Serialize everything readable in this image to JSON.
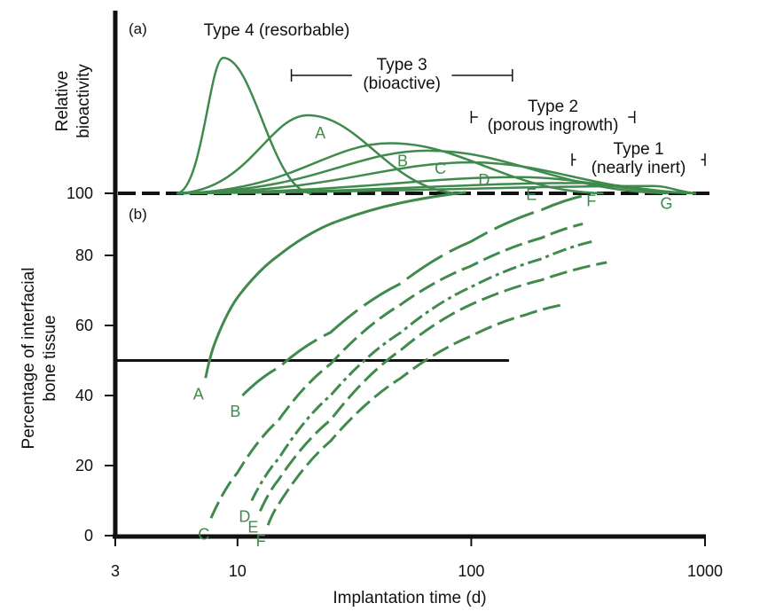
{
  "chart_data": {
    "type": "line",
    "panels": [
      "(a)",
      "(b)"
    ],
    "xlabel": "Implantation time (d)",
    "x_scale": "log",
    "xlim": [
      3,
      1000
    ],
    "x_ticks": [
      3,
      10,
      100,
      1000
    ],
    "x_tick_labels": [
      "3",
      "10",
      "100",
      "1000"
    ],
    "panel_a": {
      "ylabel_lines": [
        "Relative",
        "bioactivity"
      ],
      "baseline_value": 100,
      "baseline_label": "100",
      "types": [
        {
          "lines": [
            "Type 4 (resorbable)"
          ],
          "range": null
        },
        {
          "lines": [
            "Type 3",
            "(bioactive)"
          ],
          "range": [
            17,
            150
          ]
        },
        {
          "lines": [
            "Type 2",
            "(porous ingrowth)"
          ],
          "range": [
            100,
            500
          ]
        },
        {
          "lines": [
            "Type 1",
            "(nearly inert)"
          ],
          "range": [
            270,
            1000
          ]
        }
      ],
      "peaks": [
        {
          "name": "",
          "x": 8.7,
          "peak": 0.92
        },
        {
          "name": "A",
          "x": 20,
          "peak": 0.53
        },
        {
          "name": "B",
          "x": 45,
          "peak": 0.34
        },
        {
          "name": "C",
          "x": 65,
          "peak": 0.29
        },
        {
          "name": "D",
          "x": 100,
          "peak": 0.21
        },
        {
          "name": "E",
          "x": 160,
          "peak": 0.11
        },
        {
          "name": "F",
          "x": 290,
          "peak": 0.07
        },
        {
          "name": "G",
          "x": 600,
          "peak": 0.05
        }
      ]
    },
    "panel_b": {
      "ylabel_lines": [
        "Percentage of interfacial",
        "bone tissue"
      ],
      "ylim": [
        0,
        100
      ],
      "y_ticks": [
        0,
        20,
        40,
        60,
        80
      ],
      "reference_line_y": 50,
      "reference_line_x_end": 145,
      "series": [
        {
          "name": "A",
          "style": "solid",
          "points": [
            [
              7.3,
              45
            ],
            [
              8,
              55
            ],
            [
              10,
              68
            ],
            [
              15,
              80
            ],
            [
              25,
              89
            ],
            [
              50,
              95
            ],
            [
              95,
              98
            ]
          ]
        },
        {
          "name": "B",
          "style": "long-dash",
          "points": [
            [
              10.5,
              40
            ],
            [
              15,
              48
            ],
            [
              25,
              58
            ],
            [
              50,
              72
            ],
            [
              100,
              84
            ],
            [
              200,
              93
            ],
            [
              300,
              97
            ]
          ]
        },
        {
          "name": "C",
          "style": "dash",
          "points": [
            [
              7.7,
              5
            ],
            [
              10,
              18
            ],
            [
              15,
              33
            ],
            [
              25,
              49
            ],
            [
              50,
              66
            ],
            [
              100,
              77
            ],
            [
              200,
              85
            ],
            [
              300,
              89
            ]
          ]
        },
        {
          "name": "D",
          "style": "dot-dash",
          "points": [
            [
              11.5,
              10
            ],
            [
              15,
              22
            ],
            [
              25,
              40
            ],
            [
              50,
              58
            ],
            [
              100,
              71
            ],
            [
              200,
              79
            ],
            [
              330,
              84
            ]
          ]
        },
        {
          "name": "E",
          "style": "dash",
          "points": [
            [
              12.5,
              7
            ],
            [
              15,
              16
            ],
            [
              25,
              33
            ],
            [
              50,
              53
            ],
            [
              100,
              66
            ],
            [
              200,
              73
            ],
            [
              380,
              78
            ]
          ]
        },
        {
          "name": "F",
          "style": "dash",
          "points": [
            [
              13.5,
              3
            ],
            [
              15,
              9
            ],
            [
              25,
              27
            ],
            [
              50,
              45
            ],
            [
              100,
              57
            ],
            [
              170,
              63
            ],
            [
              250,
              66
            ]
          ]
        }
      ]
    }
  }
}
